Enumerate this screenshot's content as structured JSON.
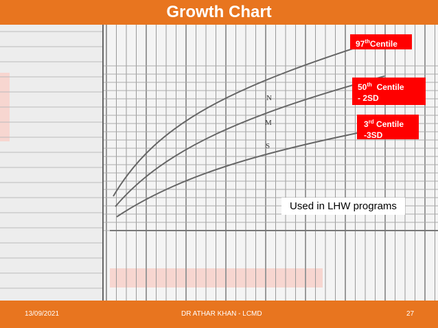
{
  "header": {
    "title": "Growth Chart"
  },
  "annotations": [
    {
      "number": "97",
      "suffix": "th",
      "text": "Centile"
    },
    {
      "number": "50",
      "suffix": "th",
      "text": "Centile",
      "line2": "- 2SD"
    },
    {
      "number": "3",
      "suffix": "rd",
      "text": "Centile",
      "line2": "-3SD"
    }
  ],
  "chart_letters": [
    "N",
    "M",
    "S"
  ],
  "caption": "Used in LHW programs",
  "footer": {
    "date": "13/09/2021",
    "author": "DR ATHAR KHAN - LCMD",
    "page": "27"
  }
}
